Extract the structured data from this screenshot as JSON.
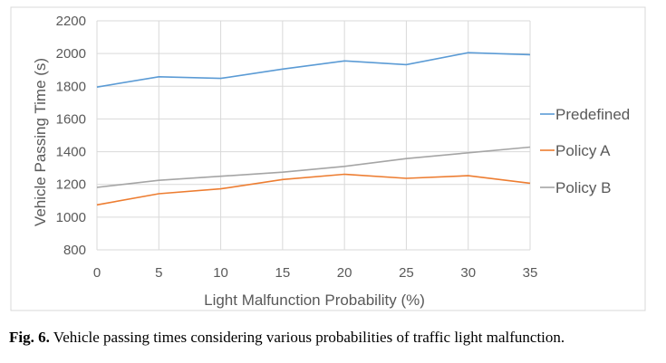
{
  "caption": {
    "label": "Fig. 6.",
    "text": " Vehicle passing times considering various probabilities of traffic light malfunction."
  },
  "chart_data": {
    "type": "line",
    "x": [
      0,
      5,
      10,
      15,
      20,
      25,
      30,
      35
    ],
    "xlabel": "Light Malfunction Probability (%)",
    "ylabel": "Vehicle Passing Time (s)",
    "xlim": [
      0,
      35
    ],
    "ylim": [
      800,
      2200
    ],
    "yticks": [
      800,
      1000,
      1200,
      1400,
      1600,
      1800,
      2000,
      2200
    ],
    "xticks": [
      0,
      5,
      10,
      15,
      20,
      25,
      30,
      35
    ],
    "grid": true,
    "legend_position": "right",
    "series": [
      {
        "name": "Predefined",
        "color": "#5b9bd5",
        "values": [
          1795,
          1858,
          1848,
          1905,
          1955,
          1932,
          2005,
          1993
        ]
      },
      {
        "name": "Policy A",
        "color": "#ed7d31",
        "values": [
          1075,
          1143,
          1173,
          1230,
          1262,
          1237,
          1253,
          1207
        ]
      },
      {
        "name": "Policy B",
        "color": "#a5a5a5",
        "values": [
          1182,
          1225,
          1250,
          1275,
          1310,
          1358,
          1393,
          1428
        ]
      }
    ]
  }
}
